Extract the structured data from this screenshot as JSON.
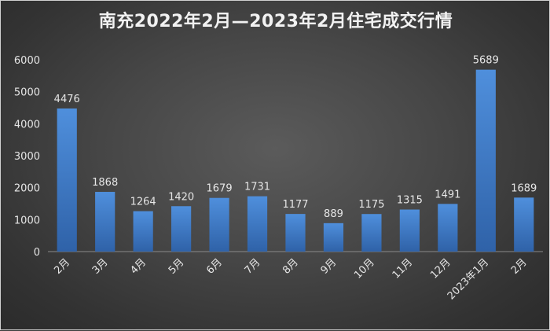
{
  "chart_data": {
    "type": "bar",
    "title": "南充2022年2月—2023年2月住宅成交行情",
    "xlabel": "",
    "ylabel": "",
    "categories": [
      "2月",
      "3月",
      "4月",
      "5月",
      "6月",
      "7月",
      "8月",
      "9月",
      "10月",
      "11月",
      "12月",
      "2023年1月",
      "2月"
    ],
    "values": [
      4476,
      1868,
      1264,
      1420,
      1679,
      1731,
      1177,
      889,
      1175,
      1315,
      1491,
      5689,
      1689
    ],
    "ylim": [
      0,
      6000
    ],
    "yticks": [
      "0",
      "1000",
      "2000",
      "3000",
      "4000",
      "5000",
      "6000"
    ],
    "grid": false,
    "legend": "none",
    "bar_color": "#4a86d0",
    "text_color": "#e6e6e6"
  }
}
